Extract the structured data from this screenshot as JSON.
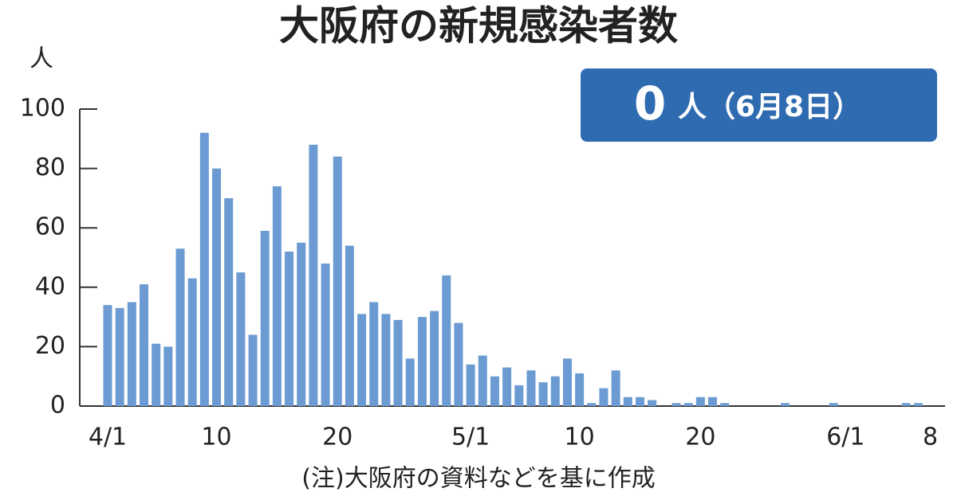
{
  "chart_data": {
    "type": "bar",
    "title": "大阪府の新規感染者数",
    "y_unit": "人",
    "badge_value": 0,
    "badge_text": "人（6月8日）",
    "note": "(注)大阪府の資料などを基に作成",
    "color": "#6b9bd2",
    "badge_color": "#2f6bb0",
    "categories": [
      "4/1",
      null,
      null,
      null,
      null,
      null,
      null,
      null,
      null,
      "10",
      null,
      null,
      null,
      null,
      null,
      null,
      null,
      null,
      null,
      "20",
      null,
      null,
      null,
      null,
      null,
      null,
      null,
      null,
      null,
      null,
      "5/1",
      null,
      null,
      null,
      null,
      null,
      null,
      null,
      null,
      "10",
      null,
      null,
      null,
      null,
      null,
      null,
      null,
      null,
      null,
      "20",
      null,
      null,
      null,
      null,
      null,
      null,
      null,
      null,
      null,
      null,
      null,
      "6/1",
      null,
      null,
      null,
      null,
      null,
      null,
      "8"
    ],
    "values": [
      34,
      33,
      35,
      41,
      21,
      20,
      53,
      43,
      92,
      80,
      70,
      45,
      24,
      59,
      74,
      52,
      55,
      88,
      48,
      84,
      54,
      31,
      35,
      31,
      29,
      16,
      30,
      32,
      44,
      28,
      14,
      17,
      10,
      13,
      7,
      12,
      8,
      10,
      16,
      11,
      1,
      6,
      12,
      3,
      3,
      2,
      0,
      1,
      1,
      3,
      3,
      1,
      0,
      0,
      0,
      0,
      1,
      0,
      0,
      0,
      1,
      0,
      0,
      0,
      0,
      0,
      1,
      1,
      0
    ],
    "ylim": [
      0,
      100
    ],
    "yticks": [
      0,
      20,
      40,
      60,
      80,
      100
    ]
  }
}
